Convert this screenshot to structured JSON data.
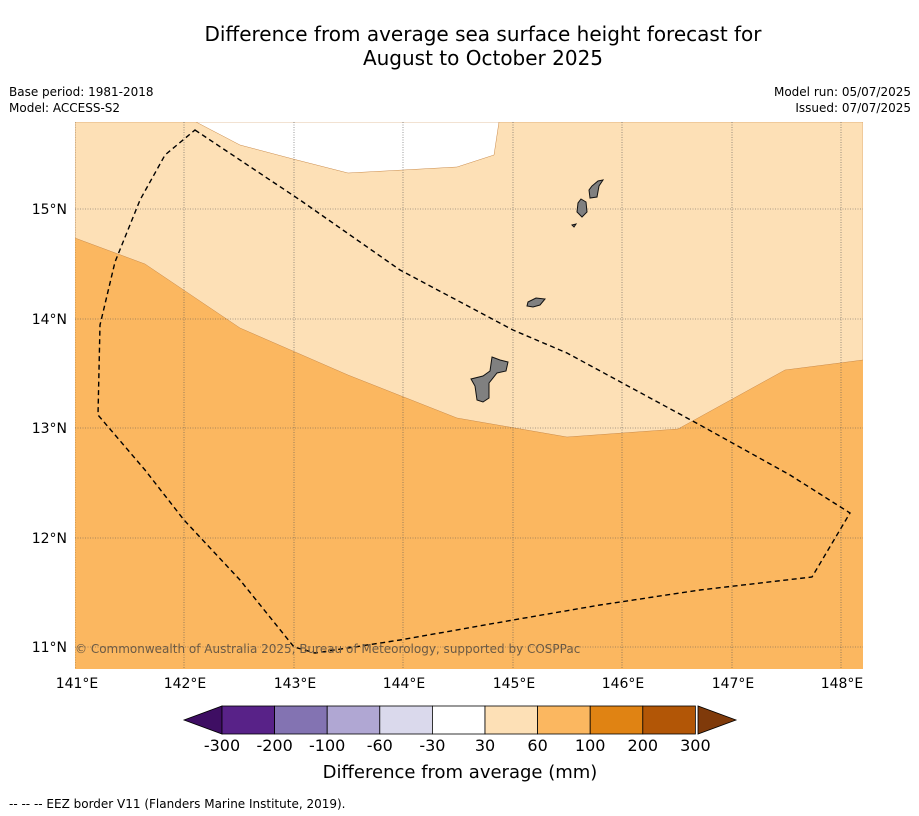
{
  "title": {
    "line1": "Difference from average sea surface height forecast for",
    "line2": "August to October 2025"
  },
  "meta_left": {
    "base_period": "Base period: 1981-2018",
    "model": "Model: ACCESS-S2"
  },
  "meta_right": {
    "model_run": "Model run: 05/07/2025",
    "issued": "Issued: 07/07/2025"
  },
  "map": {
    "lon_labels": [
      "141°E",
      "142°E",
      "143°E",
      "144°E",
      "145°E",
      "146°E",
      "147°E",
      "148°E"
    ],
    "lat_labels": [
      "15°N",
      "14°N",
      "13°N",
      "12°N",
      "11°N"
    ],
    "lon_range": [
      141.0,
      148.2
    ],
    "lat_range": [
      10.8,
      15.8
    ],
    "categories": [
      {
        "range": "30 to 60 mm",
        "color": "#fde0b6"
      },
      {
        "range": "60 to 100 mm",
        "color": "#fbb760"
      },
      {
        "range": "beyond data coverage",
        "color": "#ffffff"
      }
    ],
    "land_color": "#808080",
    "copyright": "© Commonwealth of Australia 2025, Bureau of Meteorology, supported by COSPPac"
  },
  "colorbar": {
    "colors": [
      "#3e0e63",
      "#582288",
      "#8373b2",
      "#b0a7d3",
      "#dad9ec",
      "#ffffff",
      "#fde0b6",
      "#fbb760",
      "#e08313",
      "#b25606",
      "#7f3a0a"
    ],
    "tick_labels": [
      "-300",
      "-200",
      "-100",
      "-60",
      "-30",
      "30",
      "60",
      "100",
      "200",
      "300"
    ],
    "title": "Difference from average (mm)"
  },
  "footnote": "--  --  -- EEZ border V11 (Flanders Marine Institute, 2019)."
}
